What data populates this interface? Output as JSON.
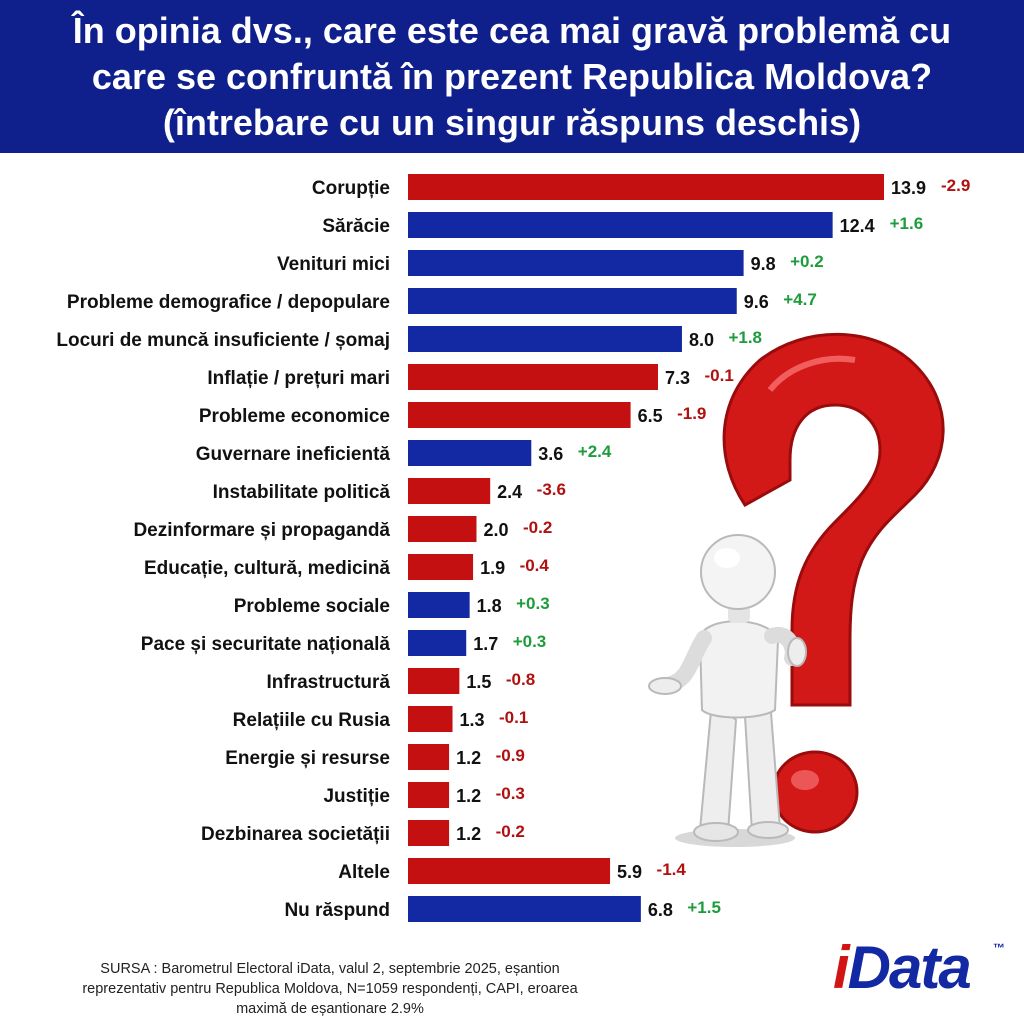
{
  "title": {
    "line1": "În opinia dvs., care este cea mai gravă problemă cu",
    "line2": "care se confruntă în prezent Republica Moldova?",
    "line3": "(întrebare cu un singur răspuns deschis)"
  },
  "colors": {
    "header_bg": "#0f1f8c",
    "increase_bar": "#1328a3",
    "decrease_bar": "#c41010",
    "positive_change": "#1e9c3c",
    "negative_change": "#b01010"
  },
  "chart_data": {
    "type": "bar",
    "orientation": "horizontal",
    "xlim": [
      0,
      14
    ],
    "grid": false,
    "categories": [
      "Corupție",
      "Sărăcie",
      "Venituri mici",
      "Probleme demografice / depopulare",
      "Locuri de muncă insuficiente / șomaj",
      "Inflație / prețuri mari",
      "Probleme economice",
      "Guvernare ineficientă",
      "Instabilitate politică",
      "Dezinformare și propagandă",
      "Educație, cultură, medicină",
      "Probleme sociale",
      "Pace și securitate națională",
      "Infrastructură",
      "Relațiile cu Rusia",
      "Energie și resurse ",
      "Justiție",
      "Dezbinarea societății",
      "Altele",
      "Nu răspund"
    ],
    "values": [
      13.9,
      12.4,
      9.8,
      9.6,
      8.0,
      7.3,
      6.5,
      3.6,
      2.4,
      2.0,
      1.9,
      1.8,
      1.7,
      1.5,
      1.3,
      1.2,
      1.2,
      1.2,
      5.9,
      6.8
    ],
    "value_labels": [
      "13.9",
      "12.4",
      "9.8",
      "9.6",
      "8.0",
      "7.3",
      "6.5",
      "3.6",
      "2.4",
      "2.0",
      "1.9",
      "1.8",
      "1.7",
      "1.5",
      "1.3",
      "1.2",
      "1.2",
      "1.2",
      "5.9",
      "6.8"
    ],
    "changes": [
      "-2.9",
      "+1.6",
      "+0.2",
      "+4.7",
      "+1.8",
      "-0.1",
      "-1.9",
      "+2.4",
      "-3.6",
      "-0.2",
      "-0.4",
      "+0.3",
      "+0.3",
      "-0.8",
      "-0.1",
      "-0.9",
      "-0.3",
      "-0.2",
      "-1.4",
      "+1.5"
    ]
  },
  "source": {
    "line1": "SURSA : Barometrul Electoral iData, valul 2, septembrie 2025, eșantion",
    "line2": "reprezentativ pentru Republica Moldova, N=1059 respondenți, CAPI, eroarea",
    "line3": "maximă de eșantionare 2.9%"
  },
  "logo": {
    "text": "iData",
    "trademark": "™"
  },
  "illustration_icon": "person-question-mark-icon"
}
